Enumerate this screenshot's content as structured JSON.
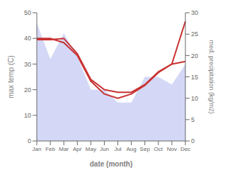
{
  "chart_data": {
    "type": "line",
    "categories": [
      "Jan",
      "Feb",
      "Mar",
      "Apr",
      "May",
      "Jun",
      "Jul",
      "Aug",
      "Sep",
      "Oct",
      "Nov",
      "Dec"
    ],
    "xlabel": "date (month)",
    "ylabel": "max temp (C)",
    "y2label": "med. precipitation (kg/m2)",
    "ylim": [
      0,
      50
    ],
    "yticks": [
      0,
      10,
      20,
      30,
      40,
      50
    ],
    "y2lim": [
      0,
      30
    ],
    "y2ticks": [
      0,
      5,
      10,
      15,
      20,
      25,
      30
    ],
    "grid": false,
    "series": [
      {
        "type": "area",
        "color": "#b0b8ee",
        "values": [
          46,
          32,
          42,
          33,
          20,
          20,
          15,
          15,
          25,
          25,
          22,
          30
        ],
        "lower": [
          0,
          0,
          0,
          0,
          0,
          0,
          0,
          0,
          0,
          0,
          0,
          0
        ]
      },
      {
        "type": "line",
        "color": "#c83232",
        "values": [
          39.5,
          39.5,
          40,
          34,
          24,
          20,
          19,
          19,
          22,
          27,
          30,
          31
        ]
      },
      {
        "type": "line",
        "color": "#c83232",
        "values": [
          24,
          24,
          23,
          20,
          14,
          11,
          10,
          11,
          13,
          16,
          18,
          28
        ],
        "axis": "y2"
      }
    ]
  }
}
